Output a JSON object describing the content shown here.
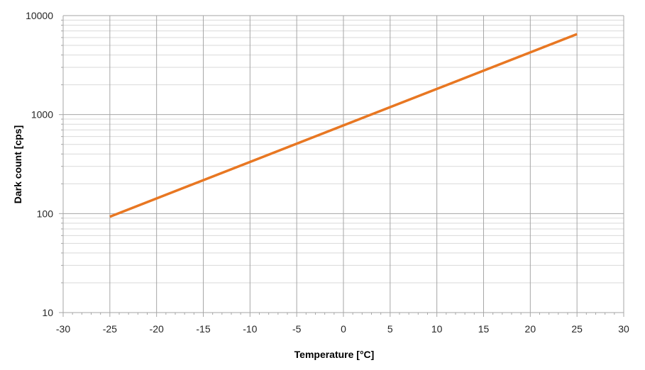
{
  "chart_data": {
    "type": "line",
    "title": "",
    "xlabel": "Temperature [°C]",
    "ylabel": "Dark count [cps]",
    "xlim": [
      -30,
      30
    ],
    "ylim": [
      10,
      10000
    ],
    "yscale": "log",
    "grid": true,
    "legend": "none",
    "x_ticks": [
      "-30",
      "-25",
      "-20",
      "-15",
      "-10",
      "-5",
      "0",
      "5",
      "10",
      "15",
      "20",
      "25",
      "30"
    ],
    "y_ticks": [
      "10",
      "100",
      "1000",
      "10000"
    ],
    "series": [
      {
        "color": "#E87722",
        "x": [
          -25,
          25
        ],
        "y": [
          93,
          6500
        ]
      }
    ]
  }
}
